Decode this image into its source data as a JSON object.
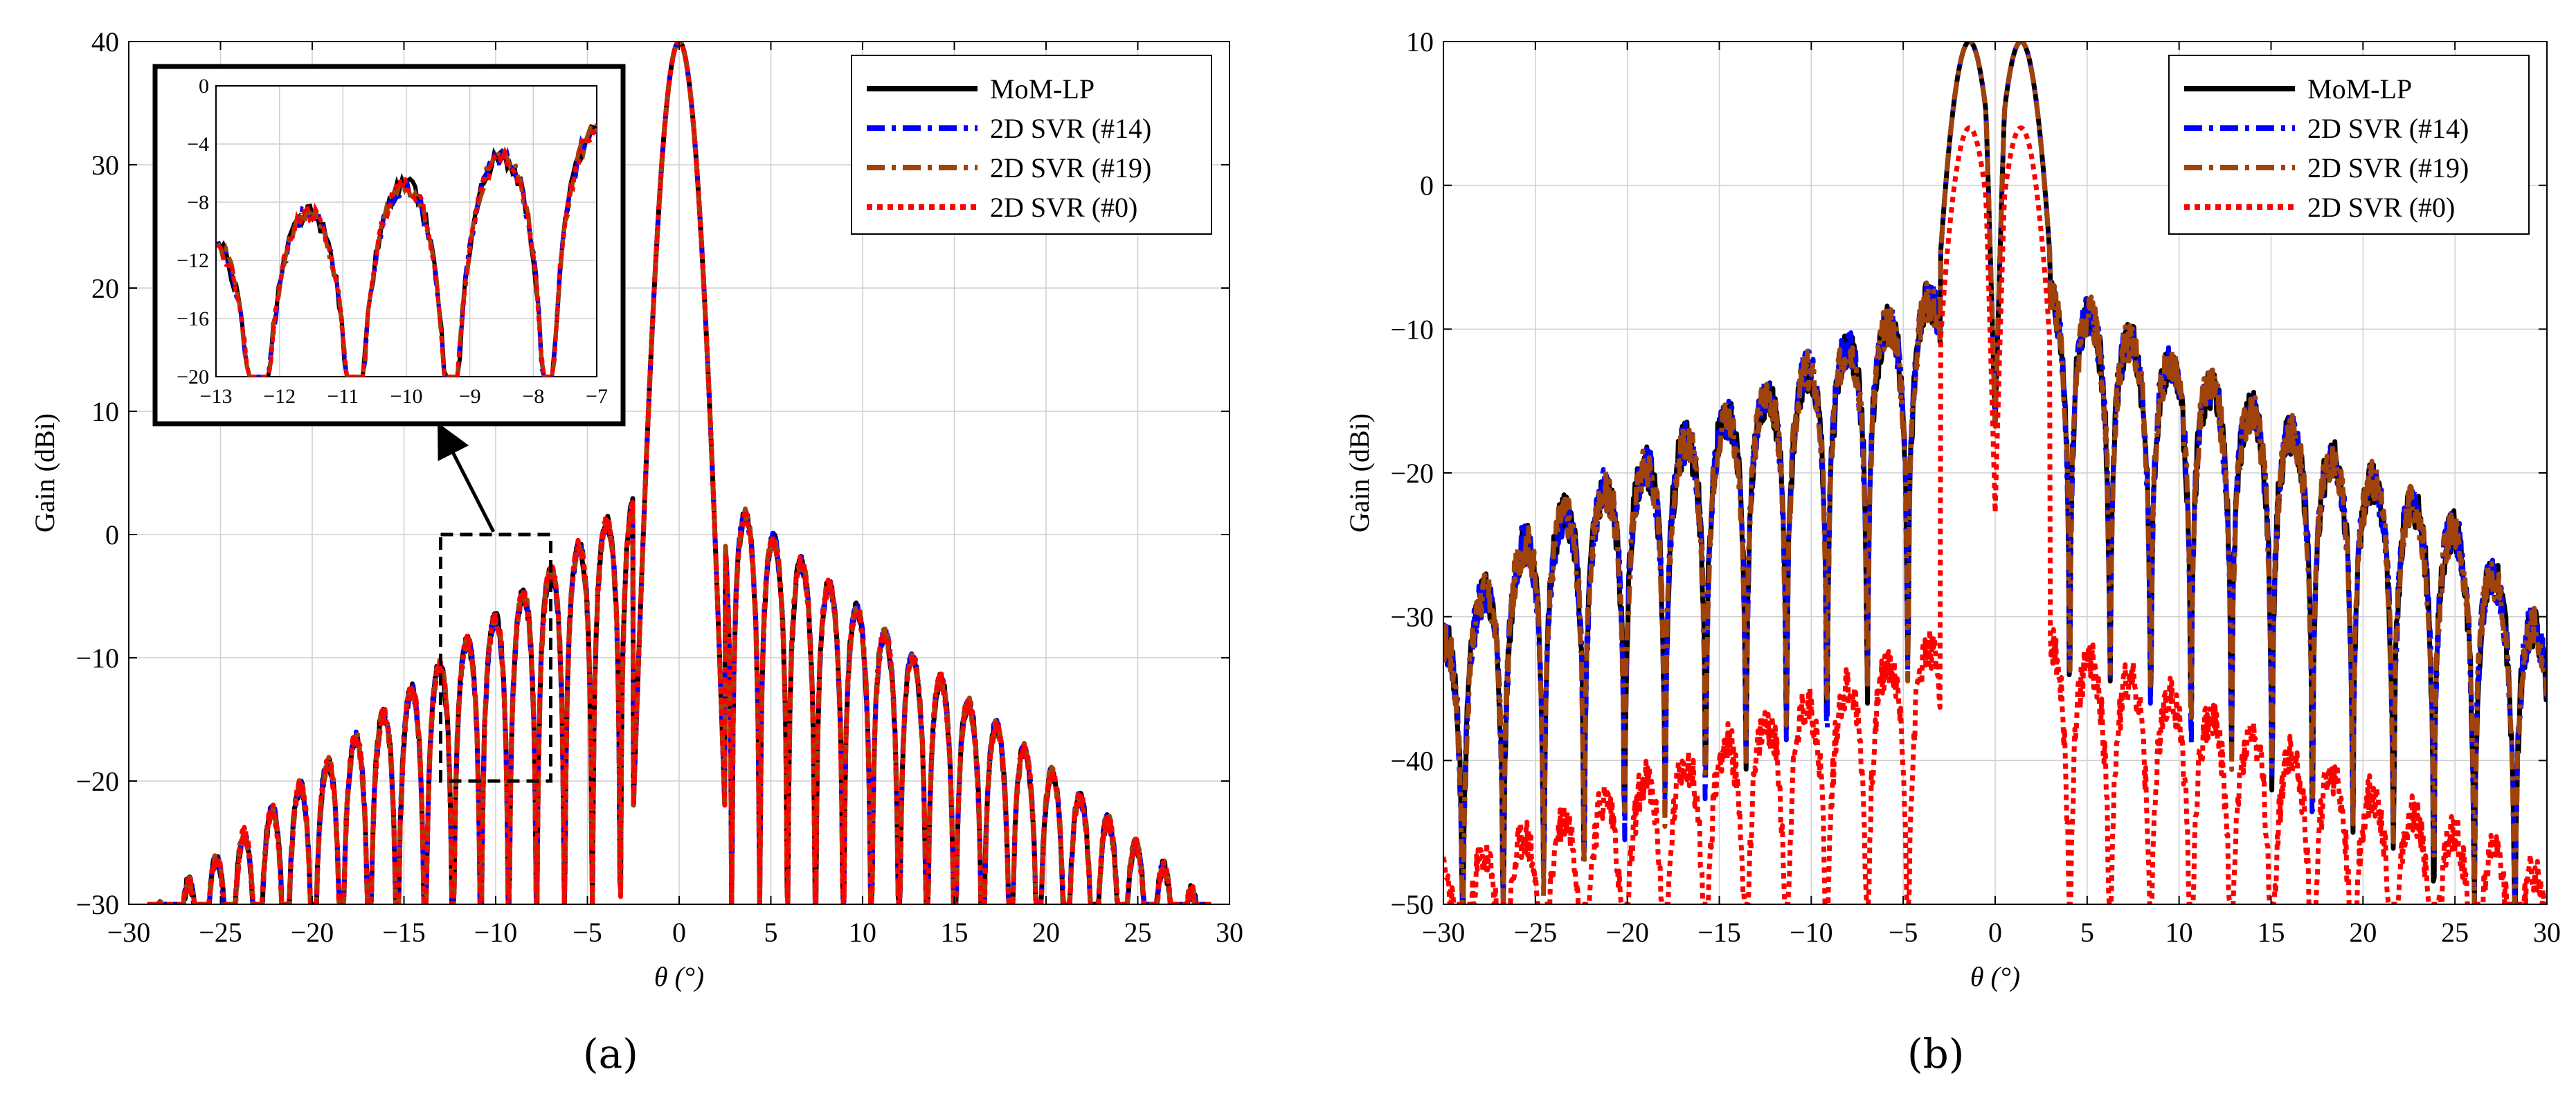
{
  "colors": {
    "mom": "#000000",
    "svr14": "#0000ff",
    "svr19": "#a0430a",
    "svr0": "#ff0000",
    "grid": "#cfcfcf",
    "zoombox": "#000000"
  },
  "chart_data": [
    {
      "id": "a",
      "type": "line",
      "panel_label": "(a)",
      "xlabel": "θ (°)",
      "ylabel": "Gain (dBi)",
      "xlim": [
        -30,
        30
      ],
      "ylim": [
        -30,
        40
      ],
      "xticks": [
        -30,
        -25,
        -20,
        -15,
        -10,
        -5,
        0,
        5,
        10,
        15,
        20,
        25,
        30
      ],
      "yticks": [
        -30,
        -20,
        -10,
        0,
        10,
        20,
        30,
        40
      ],
      "grid": true,
      "legend_position": "top-right",
      "series": [
        {
          "name": "MoM-LP",
          "style": "solid",
          "color": "#000000",
          "seed": 3
        },
        {
          "name": "2D SVR (#14)",
          "style": "dashdot",
          "color": "#0000ff",
          "seed": 7
        },
        {
          "name": "2D SVR (#19)",
          "style": "dashdot",
          "color": "#a0430a",
          "seed": 11
        },
        {
          "name": "2D SVR (#0)",
          "style": "dotted",
          "color": "#ff0000",
          "seed": 19
        }
      ],
      "zoom_region": {
        "x": [
          -13,
          -7
        ],
        "y": [
          -20,
          0
        ]
      },
      "inset": {
        "xlim": [
          -13,
          -7
        ],
        "ylim": [
          -20,
          0
        ],
        "xticks": [
          -13,
          -12,
          -11,
          -10,
          -9,
          -8,
          -7
        ],
        "yticks": [
          -20,
          -16,
          -12,
          -8,
          -4,
          0
        ]
      }
    },
    {
      "id": "b",
      "type": "line",
      "panel_label": "(b)",
      "xlabel": "θ (°)",
      "ylabel": "Gain (dBi)",
      "xlim": [
        -30,
        30
      ],
      "ylim": [
        -50,
        10
      ],
      "xticks": [
        -30,
        -25,
        -20,
        -15,
        -10,
        -5,
        0,
        5,
        10,
        15,
        20,
        25,
        30
      ],
      "yticks": [
        -50,
        -40,
        -30,
        -20,
        -10,
        0,
        10
      ],
      "grid": true,
      "legend_position": "top-right",
      "series": [
        {
          "name": "MoM-LP",
          "style": "solid",
          "color": "#000000",
          "seed": 5
        },
        {
          "name": "2D SVR (#14)",
          "style": "dashdot",
          "color": "#0000ff",
          "seed": 13
        },
        {
          "name": "2D SVR (#19)",
          "style": "dashdot",
          "color": "#a0430a",
          "seed": 17
        },
        {
          "name": "2D SVR (#0)",
          "style": "dotted",
          "color": "#ff0000",
          "seed": 23
        }
      ]
    }
  ]
}
